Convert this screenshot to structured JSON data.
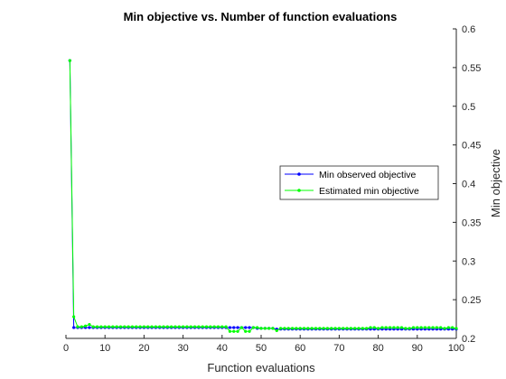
{
  "chart_data": {
    "type": "line",
    "title": "Min objective vs. Number of function evaluations",
    "xlabel": "Function evaluations",
    "ylabel": "Min objective",
    "xlim": [
      0,
      100
    ],
    "ylim": [
      0.2,
      0.6
    ],
    "xticks": [
      0,
      10,
      20,
      30,
      40,
      50,
      60,
      70,
      80,
      90,
      100
    ],
    "yticks": [
      0.2,
      0.25,
      0.3,
      0.35,
      0.4,
      0.45,
      0.5,
      0.55,
      0.6
    ],
    "ytick_labels": [
      "0.2",
      "0.25",
      "0.3",
      "0.35",
      "0.4",
      "0.45",
      "0.5",
      "0.55",
      "0.6"
    ],
    "y_axis_side": "right",
    "grid": false,
    "legend_position": "center-right",
    "series": [
      {
        "name": "Min observed objective",
        "color": "#0000ff",
        "marker": "dot",
        "x": [
          1,
          2,
          3,
          4,
          5,
          6,
          7,
          8,
          9,
          10,
          11,
          12,
          13,
          14,
          15,
          16,
          17,
          18,
          19,
          20,
          21,
          22,
          23,
          24,
          25,
          26,
          27,
          28,
          29,
          30,
          31,
          32,
          33,
          34,
          35,
          36,
          37,
          38,
          39,
          40,
          41,
          42,
          43,
          44,
          45,
          46,
          47,
          48,
          49,
          50,
          51,
          52,
          53,
          54,
          55,
          56,
          57,
          58,
          59,
          60,
          61,
          62,
          63,
          64,
          65,
          66,
          67,
          68,
          69,
          70,
          71,
          72,
          73,
          74,
          75,
          76,
          77,
          78,
          79,
          80,
          81,
          82,
          83,
          84,
          85,
          86,
          87,
          88,
          89,
          90,
          91,
          92,
          93,
          94,
          95,
          96,
          97,
          98,
          99,
          100
        ],
        "y": [
          0.559,
          0.214,
          0.214,
          0.214,
          0.214,
          0.214,
          0.214,
          0.214,
          0.214,
          0.214,
          0.214,
          0.214,
          0.214,
          0.214,
          0.214,
          0.214,
          0.214,
          0.214,
          0.214,
          0.214,
          0.214,
          0.214,
          0.214,
          0.214,
          0.214,
          0.214,
          0.214,
          0.214,
          0.214,
          0.214,
          0.214,
          0.214,
          0.214,
          0.214,
          0.214,
          0.214,
          0.214,
          0.214,
          0.214,
          0.214,
          0.214,
          0.214,
          0.214,
          0.214,
          0.214,
          0.214,
          0.214,
          0.214,
          0.213,
          0.213,
          0.213,
          0.213,
          0.213,
          0.212,
          0.212,
          0.212,
          0.212,
          0.212,
          0.212,
          0.212,
          0.212,
          0.212,
          0.212,
          0.212,
          0.212,
          0.212,
          0.212,
          0.212,
          0.212,
          0.212,
          0.212,
          0.212,
          0.212,
          0.212,
          0.212,
          0.212,
          0.212,
          0.212,
          0.212,
          0.212,
          0.212,
          0.212,
          0.212,
          0.212,
          0.212,
          0.212,
          0.212,
          0.212,
          0.212,
          0.212,
          0.212,
          0.212,
          0.212,
          0.212,
          0.212,
          0.212,
          0.212,
          0.212,
          0.212,
          0.212
        ]
      },
      {
        "name": "Estimated min objective",
        "color": "#00ff00",
        "marker": "dot",
        "x": [
          1,
          2,
          3,
          4,
          5,
          6,
          7,
          8,
          9,
          10,
          11,
          12,
          13,
          14,
          15,
          16,
          17,
          18,
          19,
          20,
          21,
          22,
          23,
          24,
          25,
          26,
          27,
          28,
          29,
          30,
          31,
          32,
          33,
          34,
          35,
          36,
          37,
          38,
          39,
          40,
          41,
          42,
          43,
          44,
          45,
          46,
          47,
          48,
          49,
          50,
          51,
          52,
          53,
          54,
          55,
          56,
          57,
          58,
          59,
          60,
          61,
          62,
          63,
          64,
          65,
          66,
          67,
          68,
          69,
          70,
          71,
          72,
          73,
          74,
          75,
          76,
          77,
          78,
          79,
          80,
          81,
          82,
          83,
          84,
          85,
          86,
          87,
          88,
          89,
          90,
          91,
          92,
          93,
          94,
          95,
          96,
          97,
          98,
          99,
          100
        ],
        "y": [
          0.559,
          0.228,
          0.215,
          0.215,
          0.216,
          0.218,
          0.215,
          0.215,
          0.215,
          0.215,
          0.215,
          0.215,
          0.215,
          0.215,
          0.215,
          0.215,
          0.215,
          0.215,
          0.215,
          0.215,
          0.215,
          0.215,
          0.215,
          0.215,
          0.215,
          0.215,
          0.215,
          0.215,
          0.215,
          0.215,
          0.215,
          0.215,
          0.215,
          0.215,
          0.215,
          0.215,
          0.215,
          0.215,
          0.215,
          0.215,
          0.215,
          0.209,
          0.209,
          0.209,
          0.214,
          0.209,
          0.209,
          0.214,
          0.214,
          0.213,
          0.213,
          0.213,
          0.213,
          0.21,
          0.213,
          0.213,
          0.213,
          0.213,
          0.213,
          0.213,
          0.213,
          0.213,
          0.213,
          0.213,
          0.213,
          0.213,
          0.213,
          0.213,
          0.213,
          0.213,
          0.213,
          0.213,
          0.213,
          0.213,
          0.213,
          0.213,
          0.213,
          0.214,
          0.214,
          0.213,
          0.214,
          0.214,
          0.214,
          0.214,
          0.214,
          0.214,
          0.213,
          0.213,
          0.214,
          0.214,
          0.214,
          0.214,
          0.214,
          0.214,
          0.214,
          0.214,
          0.213,
          0.214,
          0.214,
          0.213
        ]
      }
    ]
  }
}
